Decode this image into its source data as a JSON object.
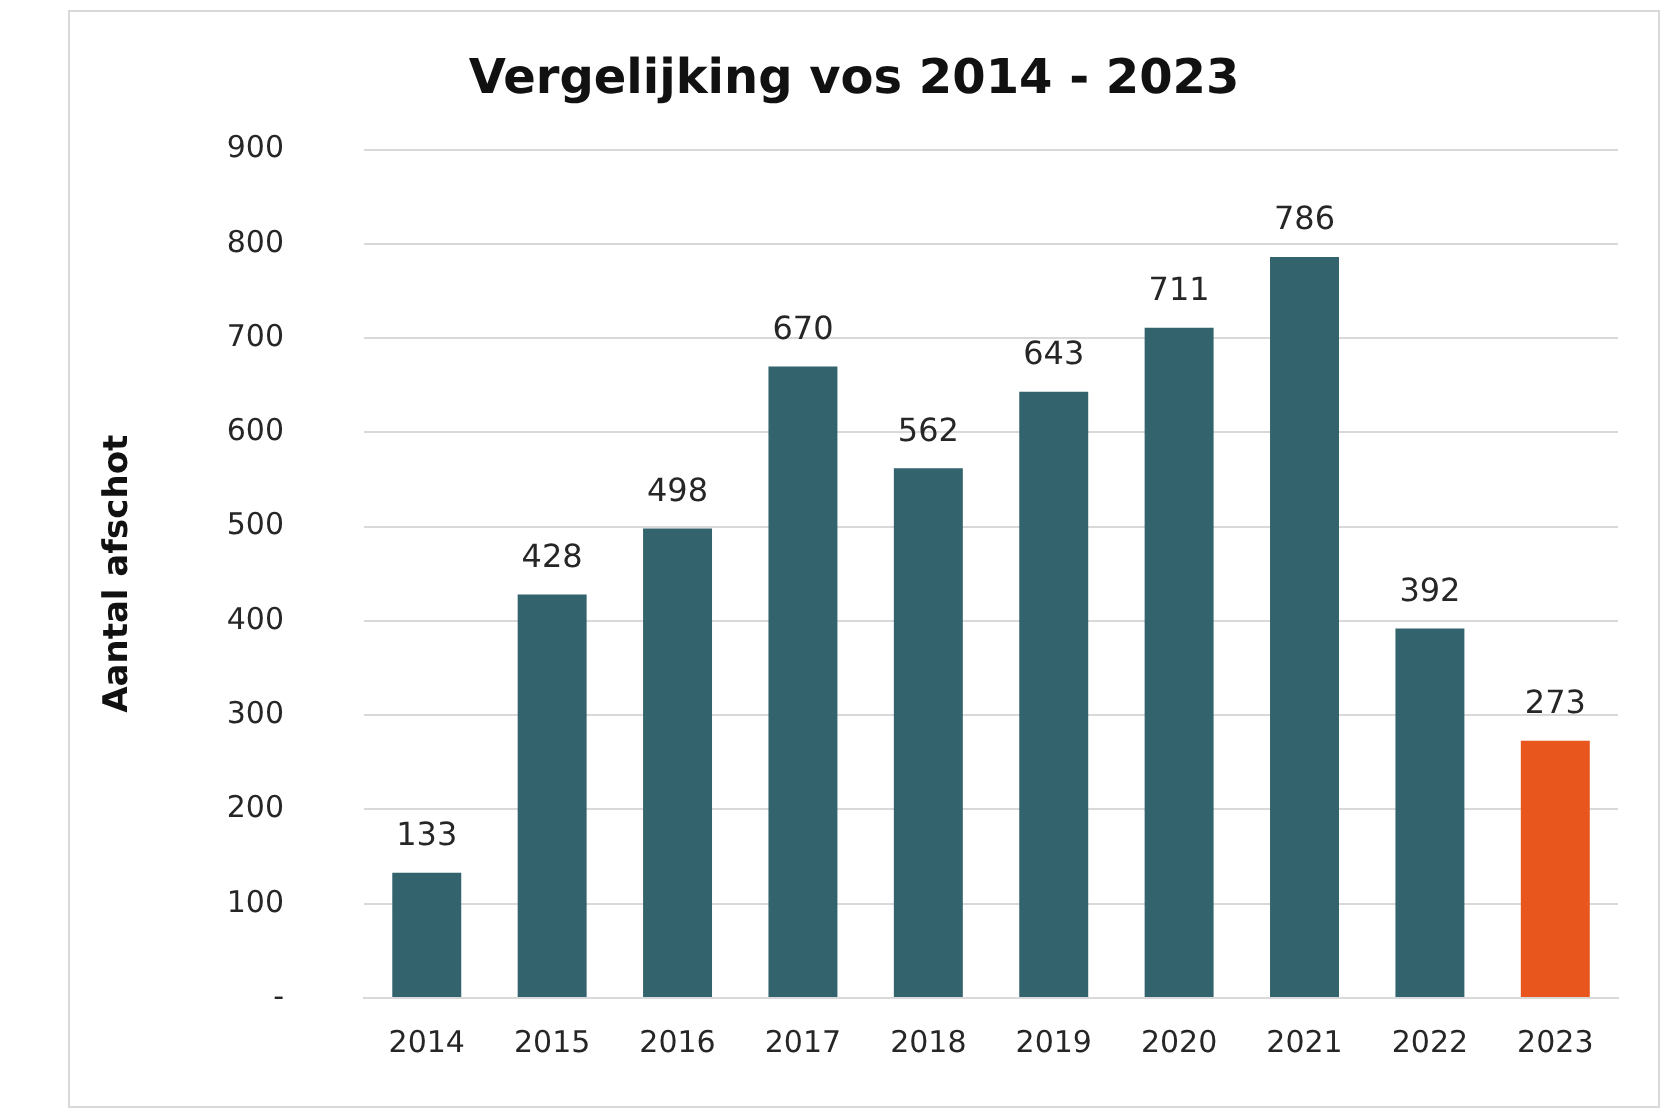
{
  "chart_data": {
    "type": "bar",
    "title": "Vergelijking vos 2014 - 2023",
    "ylabel": "Aantal afschot",
    "categories": [
      "2014",
      "2015",
      "2016",
      "2017",
      "2018",
      "2019",
      "2020",
      "2021",
      "2022",
      "2023"
    ],
    "values": [
      133,
      428,
      498,
      670,
      562,
      643,
      711,
      786,
      392,
      273
    ],
    "colors": [
      "#33636d",
      "#33636d",
      "#33636d",
      "#33636d",
      "#33636d",
      "#33636d",
      "#33636d",
      "#33636d",
      "#33636d",
      "#e8561e"
    ],
    "ylim": [
      0,
      900
    ],
    "yticks": [
      {
        "value": 0,
        "label": "-"
      },
      100,
      200,
      300,
      400,
      500,
      600,
      700,
      800,
      900
    ],
    "grid": "y",
    "data_labels": true,
    "legend": false
  }
}
